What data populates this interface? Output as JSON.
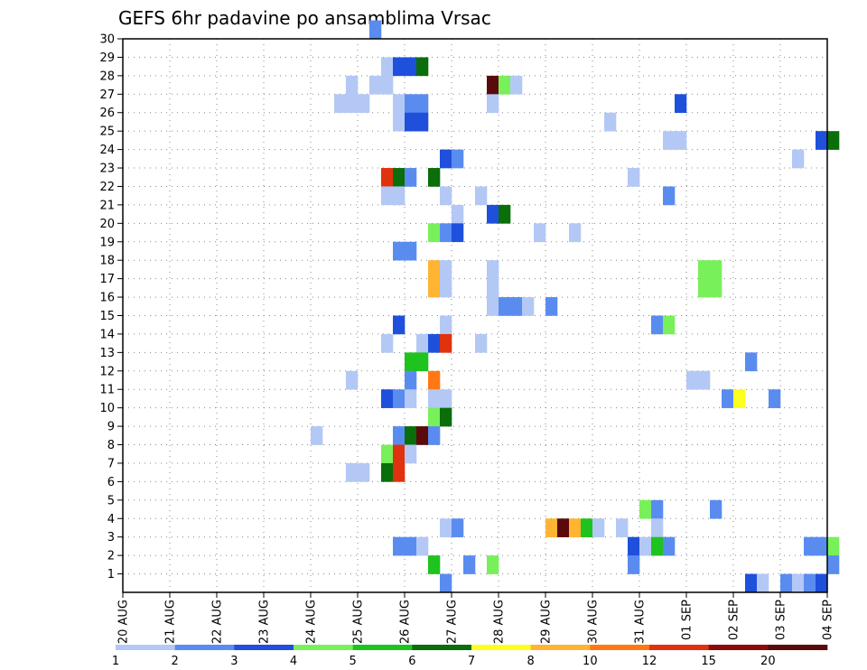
{
  "chart_data": {
    "type": "heatmap",
    "title": "GEFS 6hr padavine po ansamblima Vrsac",
    "x_tick_labels": [
      "20 AUG",
      "21 AUG",
      "22 AUG",
      "23 AUG",
      "24 AUG",
      "25 AUG",
      "26 AUG",
      "27 AUG",
      "28 AUG",
      "29 AUG",
      "30 AUG",
      "31 AUG",
      "01 SEP",
      "02 SEP",
      "03 SEP",
      "04 SEP"
    ],
    "y_tick_labels": [
      "1",
      "2",
      "3",
      "4",
      "5",
      "6",
      "7",
      "8",
      "9",
      "10",
      "11",
      "12",
      "13",
      "14",
      "15",
      "16",
      "17",
      "18",
      "19",
      "20",
      "21",
      "22",
      "23",
      "24",
      "25",
      "26",
      "27",
      "28",
      "29",
      "30"
    ],
    "x_range_days": [
      0,
      15
    ],
    "y_range_members": [
      0,
      30
    ],
    "time_step_hours": 6,
    "grid": true,
    "colorbar": {
      "levels": [
        "1",
        "2",
        "3",
        "4",
        "5",
        "6",
        "7",
        "8",
        "10",
        "12",
        "15",
        "20"
      ],
      "colors": [
        "#b4c8f5",
        "#5a8cf0",
        "#1e50dc",
        "#78f05a",
        "#1ec31e",
        "#0a6e0a",
        "#ffff1e",
        "#ffb432",
        "#ff7814",
        "#e1320f",
        "#8c0a0a",
        "#5a0a0a"
      ]
    },
    "cells": [
      [
        30,
        5.25,
        2
      ],
      [
        28,
        5.5,
        1
      ],
      [
        28,
        5.75,
        3
      ],
      [
        28,
        6,
        3
      ],
      [
        28,
        6.25,
        6
      ],
      [
        27,
        4.75,
        1
      ],
      [
        27,
        5.25,
        1
      ],
      [
        27,
        5.5,
        1
      ],
      [
        27,
        7.75,
        12
      ],
      [
        27,
        8,
        4
      ],
      [
        27,
        8.25,
        1
      ],
      [
        26,
        4.5,
        1
      ],
      [
        26,
        4.75,
        1
      ],
      [
        26,
        5,
        1
      ],
      [
        26,
        5.75,
        1
      ],
      [
        26,
        6,
        2
      ],
      [
        26,
        6.25,
        2
      ],
      [
        26,
        7.75,
        1
      ],
      [
        26,
        11.75,
        3
      ],
      [
        25,
        5.75,
        1
      ],
      [
        25,
        6,
        3
      ],
      [
        25,
        6.25,
        3
      ],
      [
        25,
        10.25,
        1
      ],
      [
        24,
        11.5,
        1
      ],
      [
        24,
        11.75,
        1
      ],
      [
        24,
        14.75,
        3
      ],
      [
        24,
        15,
        6
      ],
      [
        23,
        6.75,
        3
      ],
      [
        23,
        7,
        2
      ],
      [
        23,
        14.25,
        1
      ],
      [
        22,
        5.5,
        10
      ],
      [
        22,
        5.75,
        6
      ],
      [
        22,
        6,
        2
      ],
      [
        22,
        6.5,
        6
      ],
      [
        22,
        10.75,
        1
      ],
      [
        21,
        5.5,
        1
      ],
      [
        21,
        5.75,
        1
      ],
      [
        21,
        6.75,
        1
      ],
      [
        21,
        7.5,
        1
      ],
      [
        21,
        11.5,
        2
      ],
      [
        20,
        7,
        1
      ],
      [
        20,
        7.75,
        3
      ],
      [
        20,
        8,
        6
      ],
      [
        19,
        6.5,
        4
      ],
      [
        19,
        6.75,
        2
      ],
      [
        19,
        7,
        3
      ],
      [
        19,
        8.75,
        1
      ],
      [
        19,
        9.5,
        1
      ],
      [
        18,
        5.75,
        2
      ],
      [
        18,
        6,
        2
      ],
      [
        17,
        6.5,
        8
      ],
      [
        17,
        6.75,
        1
      ],
      [
        17,
        7.75,
        1
      ],
      [
        17,
        12.25,
        4
      ],
      [
        17,
        12.5,
        4
      ],
      [
        16,
        6.5,
        8
      ],
      [
        16,
        6.75,
        1
      ],
      [
        16,
        7.75,
        1
      ],
      [
        16,
        12.25,
        4
      ],
      [
        16,
        12.5,
        4
      ],
      [
        15,
        7.75,
        1
      ],
      [
        15,
        8,
        2
      ],
      [
        15,
        8.25,
        2
      ],
      [
        15,
        8.5,
        1
      ],
      [
        15,
        9,
        2
      ],
      [
        14,
        5.75,
        3
      ],
      [
        14,
        6.75,
        1
      ],
      [
        14,
        11.25,
        2
      ],
      [
        14,
        11.5,
        4
      ],
      [
        13,
        5.5,
        1
      ],
      [
        13,
        6.25,
        1
      ],
      [
        13,
        6.5,
        3
      ],
      [
        13,
        6.75,
        10
      ],
      [
        13,
        7.5,
        1
      ],
      [
        12,
        6,
        5
      ],
      [
        12,
        6.25,
        5
      ],
      [
        12,
        13.25,
        2
      ],
      [
        11,
        4.75,
        1
      ],
      [
        11,
        6,
        2
      ],
      [
        11,
        6.5,
        9
      ],
      [
        11,
        12,
        1
      ],
      [
        11,
        12.25,
        1
      ],
      [
        10,
        5.5,
        3
      ],
      [
        10,
        5.75,
        2
      ],
      [
        10,
        6,
        1
      ],
      [
        10,
        6.5,
        1
      ],
      [
        10,
        6.75,
        1
      ],
      [
        10,
        12.75,
        2
      ],
      [
        10,
        13,
        7
      ],
      [
        10,
        13.75,
        2
      ],
      [
        9,
        6.5,
        4
      ],
      [
        9,
        6.75,
        6
      ],
      [
        8,
        4,
        1
      ],
      [
        8,
        5.75,
        2
      ],
      [
        8,
        6,
        6
      ],
      [
        8,
        6.25,
        12
      ],
      [
        8,
        6.5,
        2
      ],
      [
        7,
        5.5,
        4
      ],
      [
        7,
        5.75,
        10
      ],
      [
        7,
        6,
        1
      ],
      [
        6,
        4.75,
        1
      ],
      [
        6,
        5,
        1
      ],
      [
        6,
        5.5,
        6
      ],
      [
        6,
        5.75,
        10
      ],
      [
        4,
        11,
        4
      ],
      [
        4,
        11.25,
        2
      ],
      [
        4,
        12.5,
        2
      ],
      [
        3,
        6.75,
        1
      ],
      [
        3,
        7,
        2
      ],
      [
        3,
        9,
        8
      ],
      [
        3,
        9.25,
        12
      ],
      [
        3,
        9.5,
        8
      ],
      [
        3,
        9.75,
        5
      ],
      [
        3,
        10,
        1
      ],
      [
        3,
        10.5,
        1
      ],
      [
        3,
        11.25,
        1
      ],
      [
        2,
        5.75,
        2
      ],
      [
        2,
        6,
        2
      ],
      [
        2,
        6.25,
        1
      ],
      [
        2,
        10.75,
        3
      ],
      [
        2,
        11,
        1
      ],
      [
        2,
        11.25,
        5
      ],
      [
        2,
        11.5,
        2
      ],
      [
        2,
        14.5,
        2
      ],
      [
        2,
        14.75,
        2
      ],
      [
        2,
        15,
        4
      ],
      [
        1,
        6.5,
        5
      ],
      [
        1,
        7.25,
        2
      ],
      [
        1,
        7.75,
        4
      ],
      [
        1,
        10.75,
        2
      ],
      [
        1,
        15,
        2
      ],
      [
        0,
        6.75,
        2
      ],
      [
        0,
        13.25,
        3
      ],
      [
        0,
        13.5,
        1
      ],
      [
        0,
        14,
        2
      ],
      [
        0,
        14.25,
        1
      ],
      [
        0,
        14.5,
        2
      ],
      [
        0,
        14.75,
        3
      ]
    ]
  }
}
